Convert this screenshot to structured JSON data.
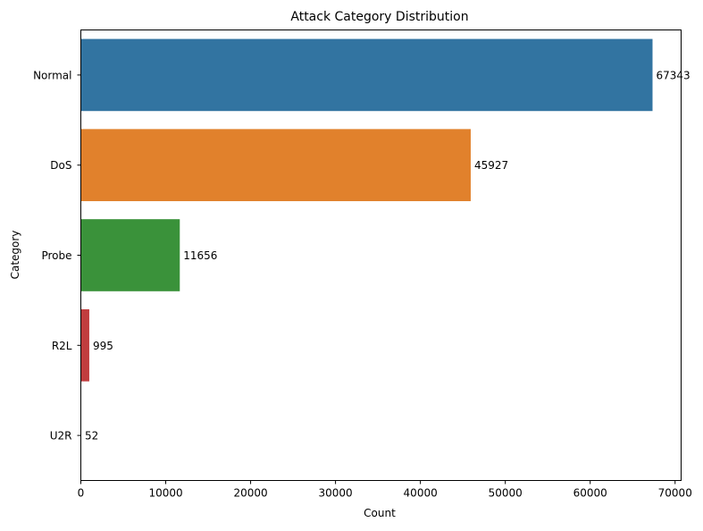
{
  "chart_data": {
    "type": "bar",
    "orientation": "horizontal",
    "title": "Attack Category Distribution",
    "xlabel": "Count",
    "ylabel": "Category",
    "categories": [
      "Normal",
      "DoS",
      "Probe",
      "R2L",
      "U2R"
    ],
    "values": [
      67343,
      45927,
      11656,
      995,
      52
    ],
    "data_labels": [
      "67343",
      "45927",
      "11656",
      "995",
      "52"
    ],
    "colors": [
      "#3274a1",
      "#e1812c",
      "#3a923a",
      "#c03d3e",
      "#9372b2"
    ],
    "xlim": [
      0,
      70710
    ],
    "xticks": [
      0,
      10000,
      20000,
      30000,
      40000,
      50000,
      60000,
      70000
    ],
    "xtick_labels": [
      "0",
      "10000",
      "20000",
      "30000",
      "40000",
      "50000",
      "60000",
      "70000"
    ],
    "grid": false,
    "legend": "none"
  }
}
